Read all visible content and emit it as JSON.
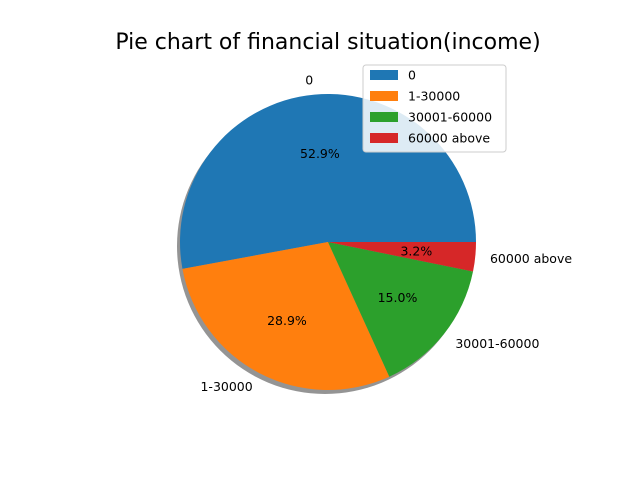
{
  "chart_data": {
    "type": "pie",
    "title": "Pie chart of financial situation(income)",
    "categories": [
      "0",
      "1-30000",
      "30001-60000",
      "60000 above"
    ],
    "values": [
      52.9,
      28.9,
      15.0,
      3.2
    ],
    "pct_labels": [
      "52.9%",
      "28.9%",
      "15.0%",
      "3.2%"
    ],
    "colors": [
      "#1f77b4",
      "#ff7f0e",
      "#2ca02c",
      "#d62728"
    ],
    "start_angle_deg": 0,
    "direction": "counterclockwise",
    "shadow": true,
    "legend": {
      "placement": "top-right",
      "entries": [
        "0",
        "1-30000",
        "30001-60000",
        "60000 above"
      ]
    }
  }
}
